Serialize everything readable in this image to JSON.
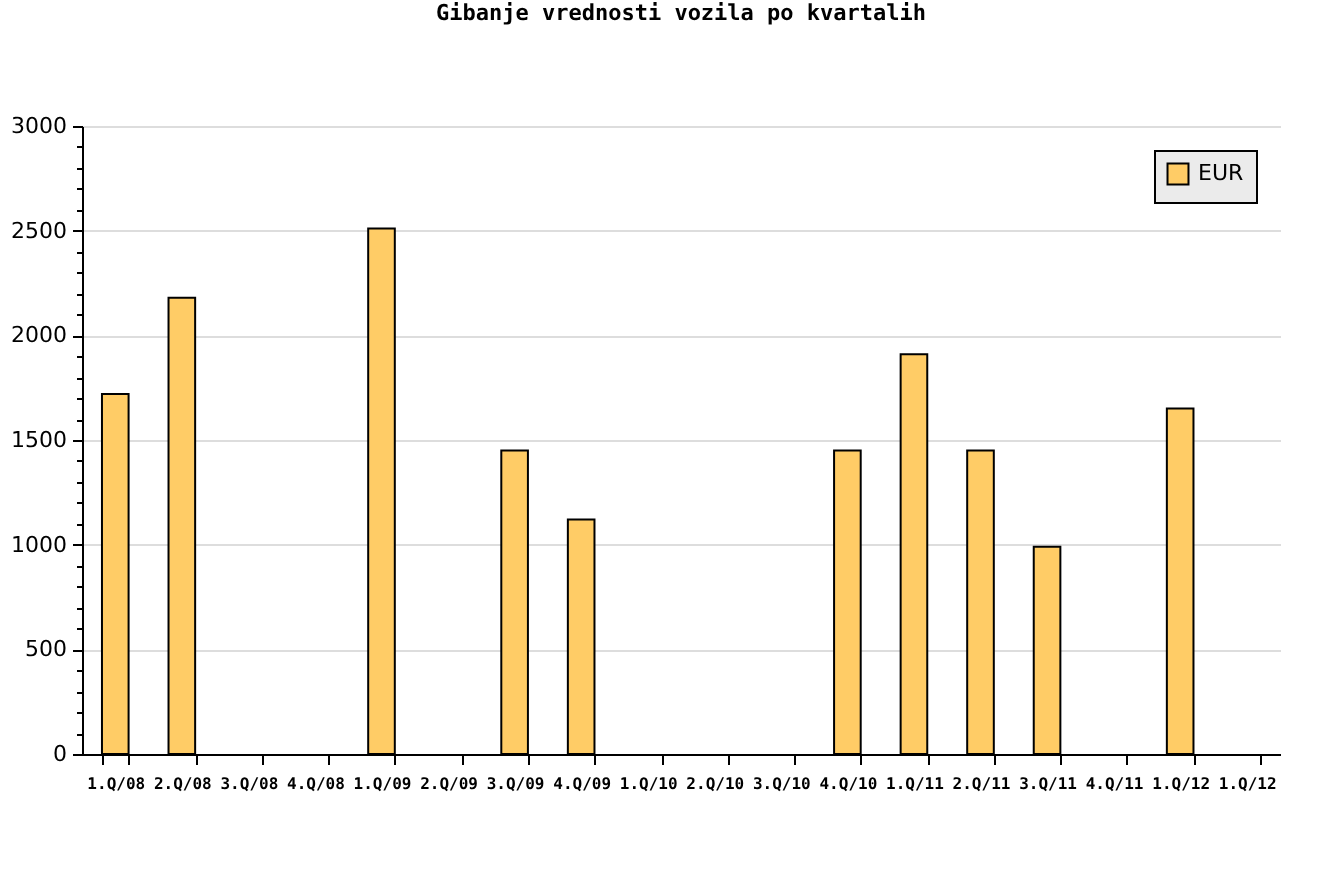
{
  "chart_data": {
    "type": "bar",
    "title": "Gibanje vrednosti vozila po kvartalih",
    "categories": [
      "1.Q/08",
      "2.Q/08",
      "3.Q/08",
      "4.Q/08",
      "1.Q/09",
      "2.Q/09",
      "3.Q/09",
      "4.Q/09",
      "1.Q/10",
      "2.Q/10",
      "3.Q/10",
      "4.Q/10",
      "1.Q/11",
      "2.Q/11",
      "3.Q/11",
      "4.Q/11",
      "1.Q/12",
      "1.Q/12"
    ],
    "series": [
      {
        "name": "EUR",
        "color": "#ffcc66",
        "values": [
          1720,
          2180,
          null,
          null,
          2510,
          null,
          1450,
          1120,
          null,
          null,
          null,
          1450,
          1910,
          1450,
          990,
          null,
          1650,
          null
        ]
      }
    ],
    "ylim": [
      0,
      3000
    ],
    "yticks": [
      0,
      {
        "value": 100,
        "label": null
      },
      {
        "value": 200,
        "label": null
      },
      {
        "value": 300,
        "label": null
      },
      {
        "value": 400,
        "label": null
      },
      500,
      {
        "value": 600,
        "label": null
      },
      {
        "value": 700,
        "label": null
      },
      {
        "value": 800,
        "label": null
      },
      {
        "value": 900,
        "label": null
      },
      1000,
      {
        "value": 1100,
        "label": null
      },
      {
        "value": 1200,
        "label": null
      },
      {
        "value": 1300,
        "label": null
      },
      {
        "value": 1400,
        "label": null
      },
      1500,
      {
        "value": 1600,
        "label": null
      },
      {
        "value": 1700,
        "label": null
      },
      {
        "value": 1800,
        "label": null
      },
      {
        "value": 1900,
        "label": null
      },
      2000,
      {
        "value": 2100,
        "label": null
      },
      {
        "value": 2200,
        "label": null
      },
      {
        "value": 2300,
        "label": null
      },
      {
        "value": 2400,
        "label": null
      },
      2500,
      {
        "value": 2600,
        "label": null
      },
      {
        "value": 2700,
        "label": null
      },
      {
        "value": 2800,
        "label": null
      },
      {
        "value": 2900,
        "label": null
      },
      3000
    ],
    "grid": "y",
    "legend": "top right"
  }
}
